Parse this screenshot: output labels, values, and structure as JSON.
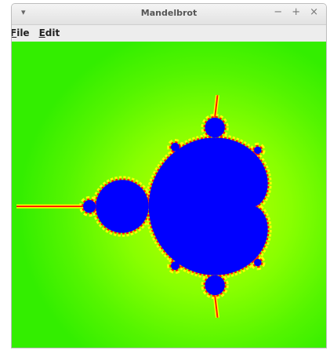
{
  "window": {
    "title": "Mandelbrot",
    "menu_icon": "▾",
    "controls": [
      "−",
      "+",
      "×"
    ]
  },
  "menu": [
    "File",
    "Edit"
  ]
}
